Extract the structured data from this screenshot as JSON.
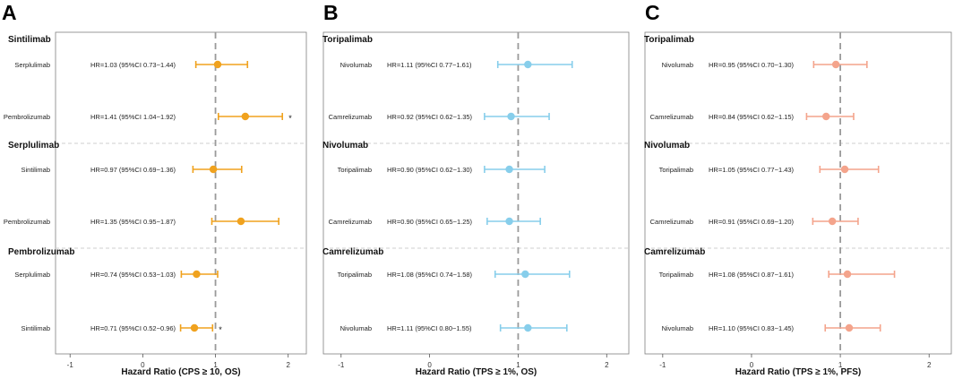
{
  "chart_data": [
    {
      "type": "forest",
      "panel_label": "A",
      "xlabel": "Hazard Ratio (CPS ≥ 10, OS)",
      "xlim": [
        -1.2,
        2.25
      ],
      "xticks": [
        -1,
        0,
        1,
        2
      ],
      "reference_line": 1,
      "color": "#f0a21e",
      "groups": [
        {
          "title": "Sintilimab",
          "rows": [
            {
              "label": "Serplulimab",
              "hr": 1.03,
              "ci": [
                0.73,
                1.44
              ],
              "text": "HR=1.03 (95%CI 0.73−1.44)",
              "sig": ""
            },
            {
              "label": "Pembrolizumab",
              "hr": 1.41,
              "ci": [
                1.04,
                1.92
              ],
              "text": "HR=1.41 (95%CI 1.04−1.92)",
              "sig": "*"
            }
          ]
        },
        {
          "title": "Serplulimab",
          "rows": [
            {
              "label": "Sintilimab",
              "hr": 0.97,
              "ci": [
                0.69,
                1.36
              ],
              "text": "HR=0.97 (95%CI 0.69−1.36)",
              "sig": ""
            },
            {
              "label": "Pembrolizumab",
              "hr": 1.35,
              "ci": [
                0.95,
                1.87
              ],
              "text": "HR=1.35 (95%CI 0.95−1.87)",
              "sig": ""
            }
          ]
        },
        {
          "title": "Pembrolizumab",
          "rows": [
            {
              "label": "Serplulimab",
              "hr": 0.74,
              "ci": [
                0.53,
                1.03
              ],
              "text": "HR=0.74 (95%CI 0.53−1.03)",
              "sig": ""
            },
            {
              "label": "Sintilimab",
              "hr": 0.71,
              "ci": [
                0.52,
                0.96
              ],
              "text": "HR=0.71 (95%CI 0.52−0.96)",
              "sig": "*"
            }
          ]
        }
      ]
    },
    {
      "type": "forest",
      "panel_label": "B",
      "xlabel": "Hazard Ratio (TPS ≥ 1%, OS)",
      "xlim": [
        -1.2,
        2.25
      ],
      "xticks": [
        -1,
        0,
        1,
        2
      ],
      "reference_line": 1,
      "color": "#87ceeb",
      "groups": [
        {
          "title": "Toripalimab",
          "rows": [
            {
              "label": "Nivolumab",
              "hr": 1.11,
              "ci": [
                0.77,
                1.61
              ],
              "text": "HR=1.11 (95%CI 0.77−1.61)",
              "sig": ""
            },
            {
              "label": "Camrelizumab",
              "hr": 0.92,
              "ci": [
                0.62,
                1.35
              ],
              "text": "HR=0.92 (95%CI 0.62−1.35)",
              "sig": ""
            }
          ]
        },
        {
          "title": "Nivolumab",
          "rows": [
            {
              "label": "Toripalimab",
              "hr": 0.9,
              "ci": [
                0.62,
                1.3
              ],
              "text": "HR=0.90 (95%CI 0.62−1.30)",
              "sig": ""
            },
            {
              "label": "Camrelizumab",
              "hr": 0.9,
              "ci": [
                0.65,
                1.25
              ],
              "text": "HR=0.90 (95%CI 0.65−1.25)",
              "sig": ""
            }
          ]
        },
        {
          "title": "Camrelizumab",
          "rows": [
            {
              "label": "Toripalimab",
              "hr": 1.08,
              "ci": [
                0.74,
                1.58
              ],
              "text": "HR=1.08 (95%CI 0.74−1.58)",
              "sig": ""
            },
            {
              "label": "Nivolumab",
              "hr": 1.11,
              "ci": [
                0.8,
                1.55
              ],
              "text": "HR=1.11 (95%CI 0.80−1.55)",
              "sig": ""
            }
          ]
        }
      ]
    },
    {
      "type": "forest",
      "panel_label": "C",
      "xlabel": "Hazard Ratio (TPS ≥ 1%, PFS)",
      "xlim": [
        -1.2,
        2.25
      ],
      "xticks": [
        -1,
        0,
        1,
        2
      ],
      "reference_line": 1,
      "color": "#f4a48c",
      "groups": [
        {
          "title": "Toripalimab",
          "rows": [
            {
              "label": "Nivolumab",
              "hr": 0.95,
              "ci": [
                0.7,
                1.3
              ],
              "text": "HR=0.95 (95%CI 0.70−1.30)",
              "sig": ""
            },
            {
              "label": "Camrelizumab",
              "hr": 0.84,
              "ci": [
                0.62,
                1.15
              ],
              "text": "HR=0.84 (95%CI 0.62−1.15)",
              "sig": ""
            }
          ]
        },
        {
          "title": "Nivolumab",
          "rows": [
            {
              "label": "Toripalimab",
              "hr": 1.05,
              "ci": [
                0.77,
                1.43
              ],
              "text": "HR=1.05 (95%CI 0.77−1.43)",
              "sig": ""
            },
            {
              "label": "Camrelizumab",
              "hr": 0.91,
              "ci": [
                0.69,
                1.2
              ],
              "text": "HR=0.91 (95%CI 0.69−1.20)",
              "sig": ""
            }
          ]
        },
        {
          "title": "Camrelizumab",
          "rows": [
            {
              "label": "Toripalimab",
              "hr": 1.08,
              "ci": [
                0.87,
                1.61
              ],
              "text": "HR=1.08 (95%CI 0.87−1.61)",
              "sig": ""
            },
            {
              "label": "Nivolumab",
              "hr": 1.1,
              "ci": [
                0.83,
                1.45
              ],
              "text": "HR=1.10 (95%CI 0.83−1.45)",
              "sig": ""
            }
          ]
        }
      ]
    }
  ]
}
